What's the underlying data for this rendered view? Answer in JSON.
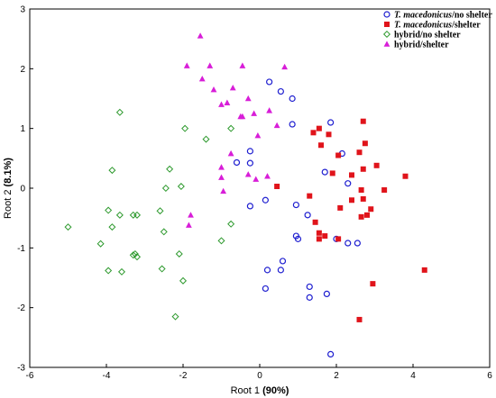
{
  "chart_data": {
    "type": "scatter",
    "title": "",
    "xlabel_prefix": "Root 1",
    "xlabel_pct": "(90%)",
    "ylabel_prefix": "Root 2",
    "ylabel_pct": "(8.1%)",
    "xlim": [
      -6,
      6
    ],
    "ylim": [
      -3,
      3
    ],
    "x_ticks": [
      -6,
      -4,
      -2,
      0,
      2,
      4,
      6
    ],
    "y_ticks": [
      -3,
      -2,
      -1,
      0,
      1,
      2,
      3
    ],
    "x_tick_labels": [
      "-6",
      "-4",
      "-2",
      "0",
      "2",
      "4",
      "6"
    ],
    "y_tick_labels": [
      "-3",
      "-2",
      "-1",
      "0",
      "1",
      "2",
      "3"
    ],
    "grid": false,
    "legend_position": "top-right",
    "series": [
      {
        "name_species": "T. macedonicus",
        "name_suffix": "/no shelter",
        "marker": "circle-open",
        "color": "#1f1fd0",
        "points": [
          [
            0.25,
            1.78
          ],
          [
            0.55,
            1.62
          ],
          [
            0.85,
            1.5
          ],
          [
            0.85,
            1.07
          ],
          [
            1.85,
            1.1
          ],
          [
            2.15,
            0.58
          ],
          [
            1.7,
            0.27
          ],
          [
            2.3,
            0.08
          ],
          [
            -0.6,
            0.43
          ],
          [
            -0.25,
            0.62
          ],
          [
            -0.25,
            0.42
          ],
          [
            0.15,
            -0.2
          ],
          [
            -0.25,
            -0.3
          ],
          [
            0.95,
            -0.28
          ],
          [
            1.25,
            -0.45
          ],
          [
            0.95,
            -0.8
          ],
          [
            1.0,
            -0.85
          ],
          [
            2.0,
            -0.85
          ],
          [
            2.3,
            -0.92
          ],
          [
            2.55,
            -0.92
          ],
          [
            0.2,
            -1.37
          ],
          [
            0.55,
            -1.37
          ],
          [
            0.6,
            -1.22
          ],
          [
            1.3,
            -1.65
          ],
          [
            1.3,
            -1.83
          ],
          [
            1.75,
            -1.77
          ],
          [
            0.15,
            -1.68
          ],
          [
            1.85,
            -2.78
          ]
        ]
      },
      {
        "name_species": "T. macedonicus",
        "name_suffix": "/shelter",
        "marker": "square-filled",
        "color": "#e0141b",
        "points": [
          [
            1.4,
            0.93
          ],
          [
            1.55,
            1.0
          ],
          [
            1.8,
            0.9
          ],
          [
            2.05,
            0.55
          ],
          [
            2.6,
            0.6
          ],
          [
            2.7,
            1.12
          ],
          [
            2.75,
            0.75
          ],
          [
            1.6,
            0.72
          ],
          [
            1.9,
            0.25
          ],
          [
            2.7,
            0.32
          ],
          [
            3.05,
            0.38
          ],
          [
            2.4,
            0.22
          ],
          [
            3.8,
            0.2
          ],
          [
            0.45,
            0.03
          ],
          [
            1.3,
            -0.13
          ],
          [
            2.65,
            -0.03
          ],
          [
            3.25,
            -0.03
          ],
          [
            2.7,
            -0.18
          ],
          [
            2.4,
            -0.2
          ],
          [
            2.1,
            -0.33
          ],
          [
            2.9,
            -0.35
          ],
          [
            2.8,
            -0.45
          ],
          [
            2.65,
            -0.48
          ],
          [
            1.45,
            -0.57
          ],
          [
            1.55,
            -0.75
          ],
          [
            1.7,
            -0.8
          ],
          [
            2.05,
            -0.85
          ],
          [
            1.55,
            -0.85
          ],
          [
            2.95,
            -1.6
          ],
          [
            2.6,
            -2.2
          ],
          [
            4.3,
            -1.37
          ]
        ]
      },
      {
        "name_species": "",
        "name_suffix": "hybrid/no shelter",
        "marker": "diamond-open",
        "color": "#2e9a2e",
        "points": [
          [
            -3.65,
            1.27
          ],
          [
            -3.85,
            0.3
          ],
          [
            -1.95,
            1.0
          ],
          [
            -1.4,
            0.82
          ],
          [
            -0.75,
            1.0
          ],
          [
            -2.35,
            0.32
          ],
          [
            -2.45,
            -0.0
          ],
          [
            -2.05,
            0.03
          ],
          [
            -3.65,
            -0.45
          ],
          [
            -3.3,
            -0.45
          ],
          [
            -3.2,
            -0.45
          ],
          [
            -2.6,
            -0.38
          ],
          [
            -3.95,
            -0.37
          ],
          [
            -3.85,
            -0.65
          ],
          [
            -4.15,
            -0.93
          ],
          [
            -3.25,
            -1.1
          ],
          [
            -3.2,
            -1.15
          ],
          [
            -3.3,
            -1.12
          ],
          [
            -2.1,
            -1.1
          ],
          [
            -1.0,
            -0.88
          ],
          [
            -0.75,
            -0.6
          ],
          [
            -2.5,
            -0.73
          ],
          [
            -5.0,
            -0.65
          ],
          [
            -3.95,
            -1.38
          ],
          [
            -3.6,
            -1.4
          ],
          [
            -2.55,
            -1.35
          ],
          [
            -2.0,
            -1.55
          ],
          [
            -2.2,
            -2.15
          ]
        ]
      },
      {
        "name_species": "",
        "name_suffix": "hybrid/shelter",
        "marker": "triangle-filled",
        "color": "#d81ed8",
        "points": [
          [
            -1.55,
            2.55
          ],
          [
            -1.9,
            2.05
          ],
          [
            -1.3,
            2.05
          ],
          [
            -0.45,
            2.05
          ],
          [
            0.65,
            2.03
          ],
          [
            -1.5,
            1.83
          ],
          [
            -1.2,
            1.65
          ],
          [
            -0.7,
            1.68
          ],
          [
            -0.3,
            1.5
          ],
          [
            -0.15,
            1.25
          ],
          [
            -1.0,
            1.4
          ],
          [
            -0.85,
            1.43
          ],
          [
            0.25,
            1.3
          ],
          [
            -0.5,
            1.2
          ],
          [
            -0.45,
            1.2
          ],
          [
            -0.05,
            0.88
          ],
          [
            0.45,
            1.05
          ],
          [
            -0.75,
            0.58
          ],
          [
            -1.0,
            0.35
          ],
          [
            -1.0,
            0.18
          ],
          [
            -0.3,
            0.23
          ],
          [
            0.2,
            0.2
          ],
          [
            -0.1,
            0.15
          ],
          [
            -0.95,
            -0.05
          ],
          [
            -1.8,
            -0.45
          ],
          [
            -1.85,
            -0.62
          ]
        ]
      }
    ]
  }
}
